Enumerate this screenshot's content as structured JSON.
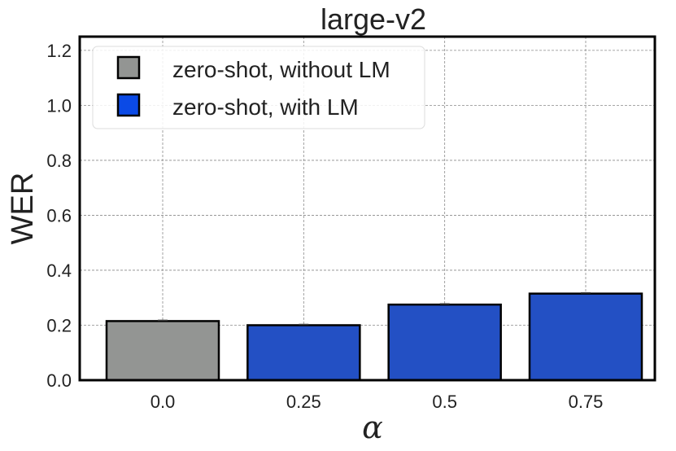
{
  "chart_data": {
    "type": "bar",
    "title": "large-v2",
    "xlabel": "α",
    "ylabel": "WER",
    "categories": [
      "0.0",
      "0.25",
      "0.5",
      "0.75"
    ],
    "values": [
      0.215,
      0.2,
      0.275,
      0.315
    ],
    "bar_series": [
      "zero-shot, without LM",
      "zero-shot, with LM",
      "zero-shot, with LM",
      "zero-shot, with LM"
    ],
    "series": [
      {
        "name": "zero-shot, without LM",
        "color": "#939593"
      },
      {
        "name": "zero-shot, with LM",
        "color": "#2350c4"
      }
    ],
    "legend_colors": [
      "#939593",
      "#0b4ae6"
    ],
    "ylim": [
      0,
      1.25
    ],
    "yticks": [
      "0.0",
      "0.2",
      "0.4",
      "0.6",
      "0.8",
      "1.0",
      "1.2"
    ],
    "grid": true,
    "legend_position": "top-left"
  }
}
